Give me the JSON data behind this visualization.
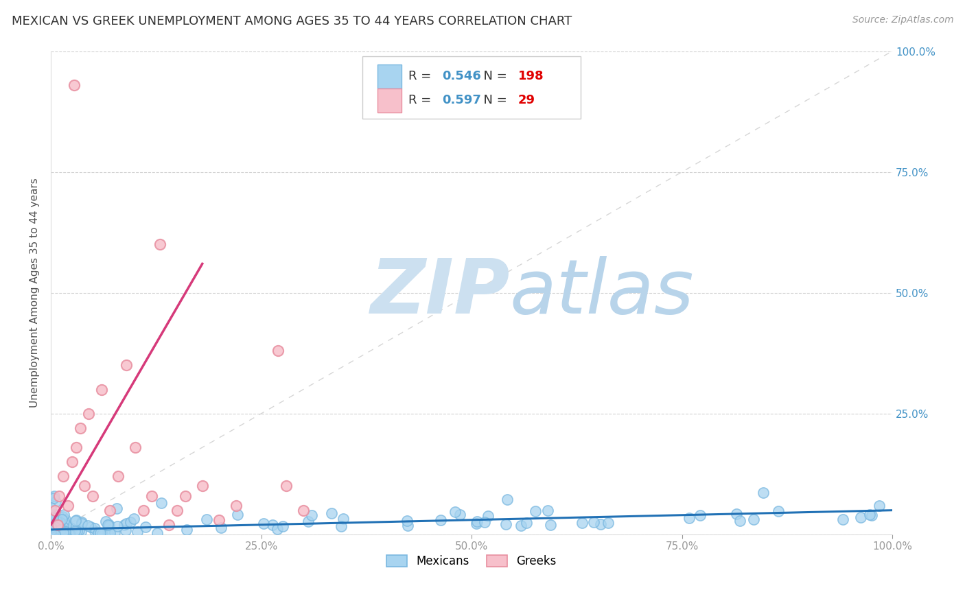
{
  "title": "MEXICAN VS GREEK UNEMPLOYMENT AMONG AGES 35 TO 44 YEARS CORRELATION CHART",
  "source": "Source: ZipAtlas.com",
  "ylabel": "Unemployment Among Ages 35 to 44 years",
  "xlim": [
    0,
    1.0
  ],
  "ylim": [
    0,
    1.0
  ],
  "xticks": [
    0.0,
    0.25,
    0.5,
    0.75,
    1.0
  ],
  "yticks": [
    0.0,
    0.25,
    0.5,
    0.75,
    1.0
  ],
  "xticklabels": [
    "0.0%",
    "25.0%",
    "50.0%",
    "75.0%",
    "100.0%"
  ],
  "yticklabels": [
    "",
    "25.0%",
    "50.0%",
    "75.0%",
    "100.0%"
  ],
  "mexican_color": "#a8d4f0",
  "mexican_edge_color": "#7ab8e0",
  "greek_color": "#f7c0cb",
  "greek_edge_color": "#e88fa0",
  "mexican_R": 0.546,
  "mexican_N": 198,
  "greek_R": 0.597,
  "greek_N": 29,
  "legend_R_color": "#4292c6",
  "legend_N_color": "#e00000",
  "watermark_zip_color": "#c8dff0",
  "watermark_atlas_color": "#b0cce6",
  "background_color": "#ffffff",
  "grid_color": "#cccccc",
  "mexican_trend_color": "#2171b5",
  "greek_trend_color": "#d63a7a",
  "diagonal_color": "#cccccc",
  "tick_label_color": "#4292c6",
  "title_fontsize": 13,
  "axis_label_fontsize": 11
}
